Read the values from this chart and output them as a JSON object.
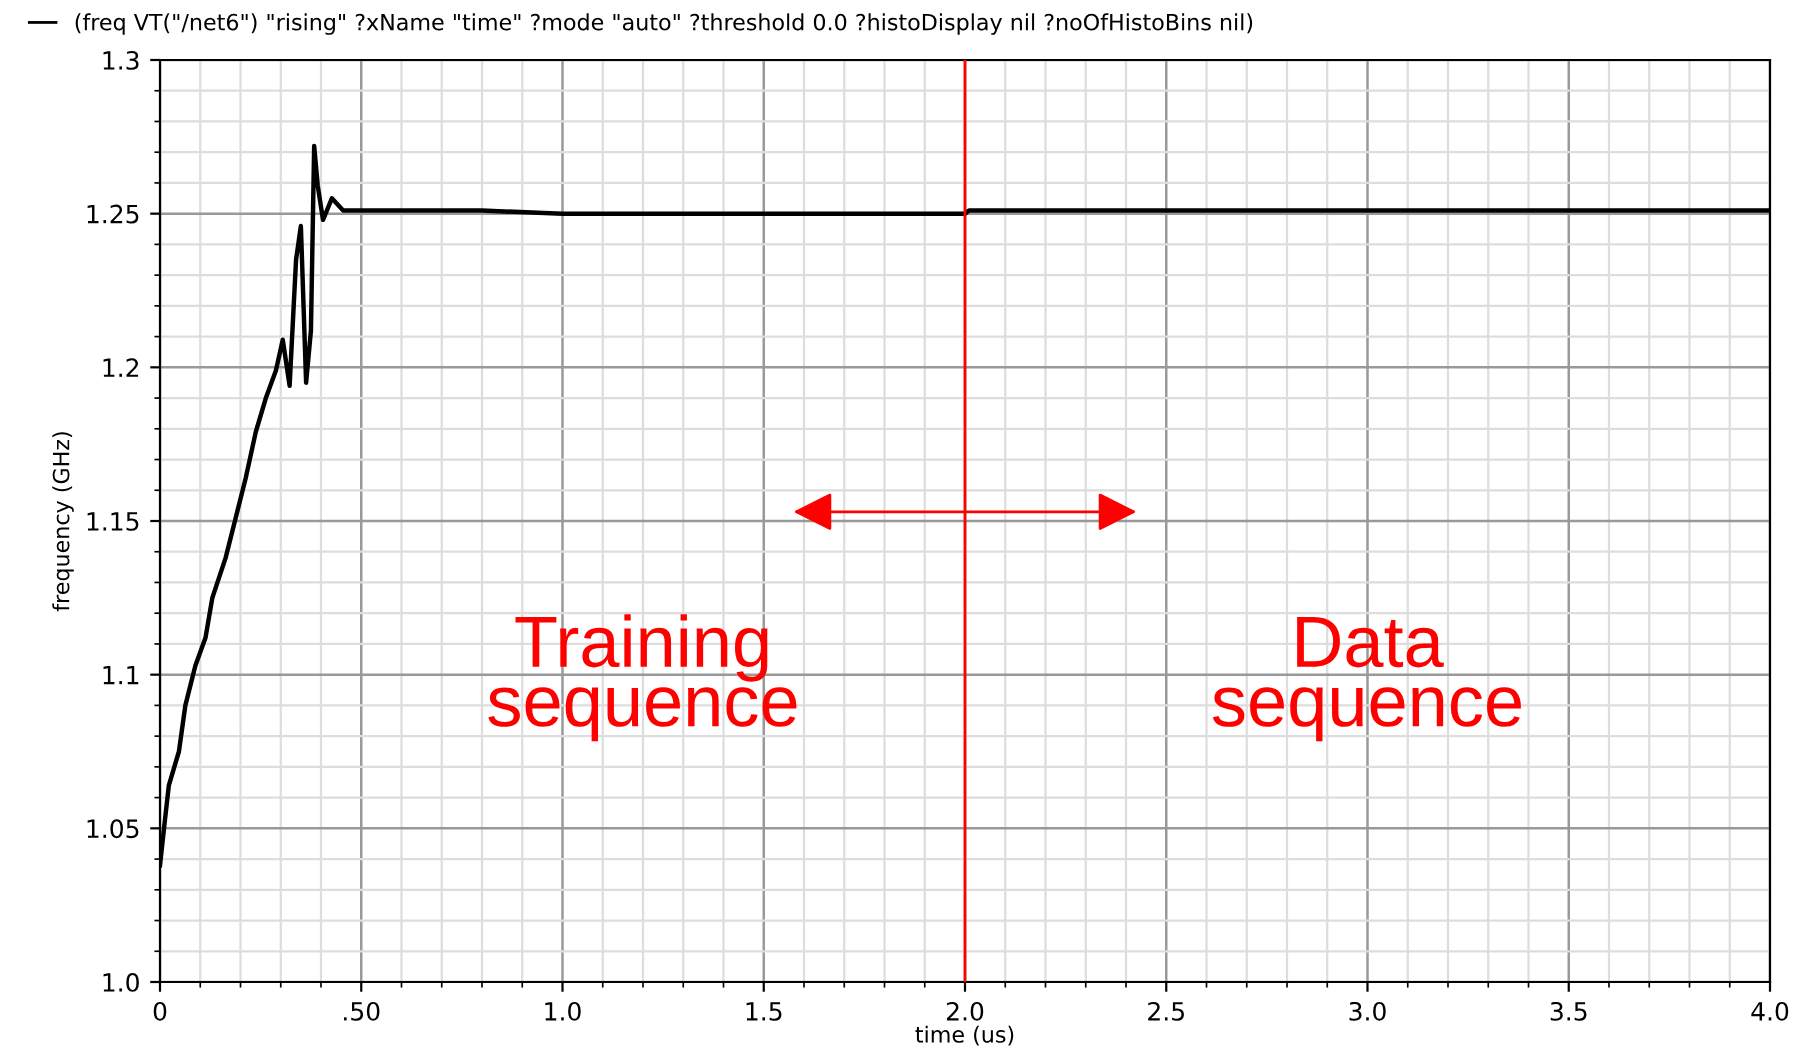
{
  "chart_data": {
    "type": "line",
    "xlabel": "time (us)",
    "ylabel": "frequency (GHz)",
    "xlim": [
      0,
      4.0
    ],
    "ylim": [
      1.0,
      1.3
    ],
    "xticks": [
      0,
      {
        "value": 0.5,
        "label": ".50"
      },
      {
        "value": 1.0,
        "label": "1.0"
      },
      1.5,
      {
        "value": 2.0,
        "label": "2.0"
      },
      2.5,
      {
        "value": 3.0,
        "label": "3.0"
      },
      3.5,
      {
        "value": 4.0,
        "label": "4.0"
      }
    ],
    "yticks": [
      {
        "value": 1.0,
        "label": "1.0"
      },
      1.05,
      1.1,
      1.15,
      1.2,
      1.25,
      1.3
    ],
    "grid": true,
    "legend": "top left",
    "line_style": "solid",
    "marker": "none",
    "series": [
      {
        "name": "(freq VT(\"/net6\") \"rising\" ?xName \"time\" ?mode \"auto\" ?threshold 0.0 ?histoDisplay nil ?noOfHistoBins nil)",
        "color": "#000000",
        "x": [
          0,
          0.01,
          0.022,
          0.047,
          0.063,
          0.088,
          0.113,
          0.13,
          0.163,
          0.188,
          0.213,
          0.238,
          0.263,
          0.288,
          0.305,
          0.322,
          0.338,
          0.35,
          0.363,
          0.375,
          0.383,
          0.392,
          0.405,
          0.427,
          0.455,
          0.5,
          0.8,
          1.0,
          1.5,
          2.0,
          2.01,
          2.2,
          2.4,
          2.6,
          2.8,
          3.0,
          3.2,
          3.4,
          3.6,
          3.8,
          4.0
        ],
        "values": [
          1.038,
          1.05,
          1.064,
          1.075,
          1.09,
          1.103,
          1.112,
          1.125,
          1.138,
          1.151,
          1.164,
          1.179,
          1.19,
          1.199,
          1.209,
          1.194,
          1.235,
          1.246,
          1.195,
          1.212,
          1.272,
          1.259,
          1.248,
          1.255,
          1.251,
          1.251,
          1.251,
          1.25,
          1.25,
          1.25,
          1.251,
          1.251,
          1.251,
          1.251,
          1.251,
          1.251,
          1.251,
          1.251,
          1.251,
          1.251,
          1.251
        ]
      }
    ],
    "ref_lines": [
      {
        "axis": "x",
        "value": 2.0,
        "color": "#ff0000"
      }
    ],
    "annotations": [
      "Training\nsequence",
      "Data\nsequence"
    ]
  }
}
